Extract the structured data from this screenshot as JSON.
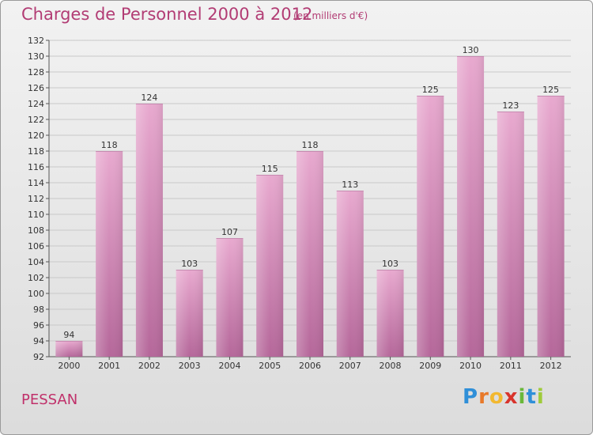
{
  "title": "Charges de Personnel 2000 à 2012",
  "subtitle": "(en milliers d'€)",
  "town": "PESSAN",
  "logo": {
    "letters": [
      "P",
      "r",
      "o",
      "x",
      "i",
      "t",
      "i"
    ],
    "colors": [
      "#2f8fd8",
      "#e8792a",
      "#f2b830",
      "#d8342c",
      "#6ab83a",
      "#2f8fd8",
      "#9fcb3a"
    ]
  },
  "colors": {
    "bar_top": "#e8a9cf",
    "bar_bottom": "#b5679a",
    "grid": "#c9c9c9"
  },
  "chart_data": {
    "type": "bar",
    "title": "Charges de Personnel 2000 à 2012",
    "subtitle": "(en milliers d'€)",
    "categories": [
      "2000",
      "2001",
      "2002",
      "2003",
      "2004",
      "2005",
      "2006",
      "2007",
      "2008",
      "2009",
      "2010",
      "2011",
      "2012"
    ],
    "values": [
      94,
      118,
      124,
      103,
      107,
      115,
      118,
      113,
      103,
      125,
      130,
      123,
      125
    ],
    "ylim": [
      92,
      132
    ],
    "yticks": [
      92,
      94,
      96,
      98,
      100,
      102,
      104,
      106,
      108,
      110,
      112,
      114,
      116,
      118,
      120,
      122,
      124,
      126,
      128,
      130,
      132
    ],
    "grid": true,
    "data_labels": true
  }
}
